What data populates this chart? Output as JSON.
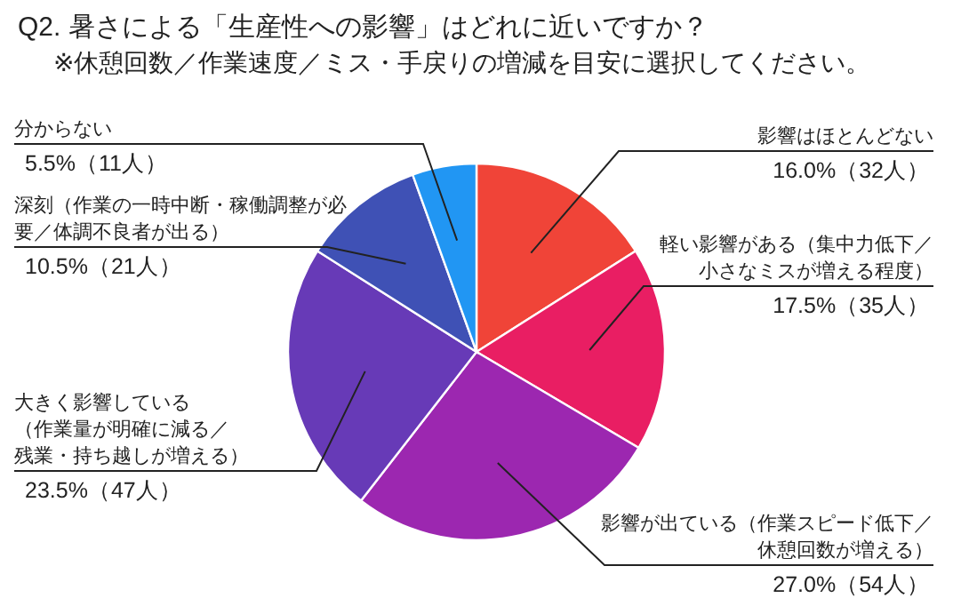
{
  "chart_data": {
    "type": "pie",
    "title": "Q2. 暑さによる「生産性への影響」はどれに近いですか？",
    "subtitle": "※休憩回数／作業速度／ミス・手戻りの増減を目安に選択してください。",
    "categories": [
      "影響はほとんどない",
      "軽い影響がある（集中力低下／小さなミスが増える程度）",
      "影響が出ている（作業スピード低下／休憩回数が増える）",
      "大きく影響している（作業量が明確に減る／残業・持ち越しが増える）",
      "深刻（作業の一時中断・稼働調整が必要／体調不良者が出る）",
      "分からない"
    ],
    "values": [
      16.0,
      17.5,
      27.0,
      23.5,
      10.5,
      5.5
    ],
    "value_labels": [
      "16.0%（32人）",
      "17.5%（35人）",
      "27.0%（54人）",
      "23.5%（47人）",
      "10.5%（21人）",
      "5.5%（11人）"
    ],
    "colors": [
      "#f04438",
      "#e91e63",
      "#9c27b0",
      "#673ab7",
      "#3f51b5",
      "#2196f3"
    ]
  }
}
